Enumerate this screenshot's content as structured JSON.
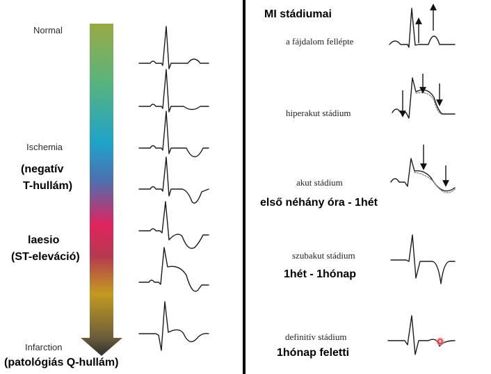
{
  "left": {
    "stage_labels": {
      "normal": "Normal",
      "ischemia": "Ischemia",
      "infarction": "Infarction"
    },
    "annotations": {
      "ischemia_note_line1": "(negatív",
      "ischemia_note_line2": "T-hullám)",
      "laesio_title": "laesio",
      "laesio_note": "(ST-eleváció)",
      "infarction_note": "(patológiás Q-hullám)"
    },
    "gradient_colors": [
      "#9aaa44",
      "#5ab47a",
      "#1fa3c9",
      "#4d6fb0",
      "#e0245f",
      "#b5394f",
      "#c49a20",
      "#7c6b34",
      "#3a3a3a"
    ]
  },
  "right": {
    "title": "MI stádiumai",
    "stages": [
      {
        "label": "a fájdalom fellépte",
        "note": ""
      },
      {
        "label": "hiperakut stádium",
        "note": ""
      },
      {
        "label": "akut stádium",
        "note": "első néhány óra - 1hét"
      },
      {
        "label": "szubakut stádium",
        "note": "1hét - 1hónap"
      },
      {
        "label": "definitív stádium",
        "note": "1hónap feletti"
      }
    ],
    "marker_color": "#e8283a"
  }
}
